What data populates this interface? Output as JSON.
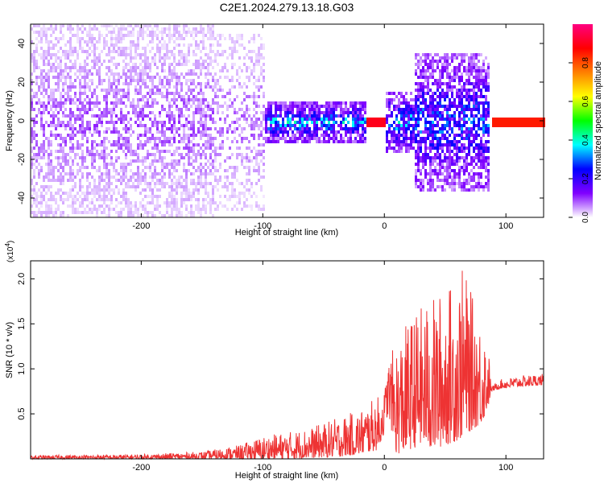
{
  "title": "C2E1.2024.279.13.18.G03",
  "chart_data": [
    {
      "type": "heatmap",
      "xlabel": "Height of straight line (km)",
      "ylabel": "Frequency (Hz)",
      "xlim": [
        -291,
        131
      ],
      "ylim": [
        -50,
        50
      ],
      "xticks": [
        -200,
        -100,
        0,
        100
      ],
      "yticks": [
        -40,
        -20,
        0,
        20,
        40
      ],
      "colorbar": {
        "label": "Normalized spectral amplitude",
        "range": [
          0,
          1
        ],
        "ticks": [
          0.0,
          0.2,
          0.4,
          0.6,
          0.8
        ],
        "colors": [
          "#ffffff",
          "#8000ff",
          "#0000ff",
          "#00ffff",
          "#00ff00",
          "#ffff00",
          "#ff8000",
          "#ff0000",
          "#ff0080"
        ]
      },
      "regions": [
        {
          "x": [
            -291,
            -140
          ],
          "freq_halfwidth": 50,
          "amplitude": 0.08,
          "density": 0.55
        },
        {
          "x": [
            -140,
            -100
          ],
          "freq_halfwidth": 45,
          "amplitude": 0.07,
          "density": 0.4
        },
        {
          "x": [
            -100,
            -15
          ],
          "freq_halfwidth": 10,
          "amplitude": 0.3,
          "density": 0.8
        },
        {
          "x": [
            -15,
            0
          ],
          "freq_halfwidth": 3,
          "amplitude": 0.9,
          "density": 1.0
        },
        {
          "x": [
            0,
            25
          ],
          "freq_halfwidth": 15,
          "amplitude": 0.3,
          "density": 0.7
        },
        {
          "x": [
            25,
            85
          ],
          "freq_halfwidth": 35,
          "amplitude": 0.25,
          "density": 0.7
        },
        {
          "x": [
            88,
            131
          ],
          "freq_halfwidth": 3,
          "amplitude": 0.85,
          "density": 1.0
        }
      ]
    },
    {
      "type": "line",
      "xlabel": "Height of straight line (km)",
      "ylabel": "SNR (10 * v/v)",
      "y_multiplier": "(x10^4)",
      "xlim": [
        -291,
        131
      ],
      "ylim": [
        0,
        2.2
      ],
      "xticks": [
        -200,
        -100,
        0,
        100
      ],
      "yticks": [
        0.5,
        1.0,
        1.5,
        2.0
      ],
      "color": "#ee3333",
      "envelope": {
        "x": [
          -291,
          -200,
          -150,
          -120,
          -100,
          -80,
          -60,
          -40,
          -20,
          -5,
          0,
          3,
          10,
          20,
          30,
          40,
          50,
          60,
          65,
          70,
          80,
          85,
          88,
          95,
          110,
          131
        ],
        "upper": [
          0.04,
          0.05,
          0.08,
          0.15,
          0.25,
          0.3,
          0.35,
          0.45,
          0.55,
          0.7,
          0.75,
          1.1,
          1.3,
          1.55,
          1.7,
          1.8,
          1.9,
          2.0,
          2.15,
          1.9,
          1.5,
          1.35,
          0.8,
          0.88,
          0.92,
          0.95
        ],
        "lower": [
          0.0,
          0.0,
          0.0,
          0.0,
          0.0,
          0.0,
          0.01,
          0.02,
          0.05,
          0.1,
          0.3,
          0.5,
          0.05,
          0.1,
          0.15,
          0.1,
          0.15,
          0.2,
          0.25,
          0.3,
          0.4,
          0.55,
          0.75,
          0.78,
          0.8,
          0.82
        ]
      }
    }
  ]
}
